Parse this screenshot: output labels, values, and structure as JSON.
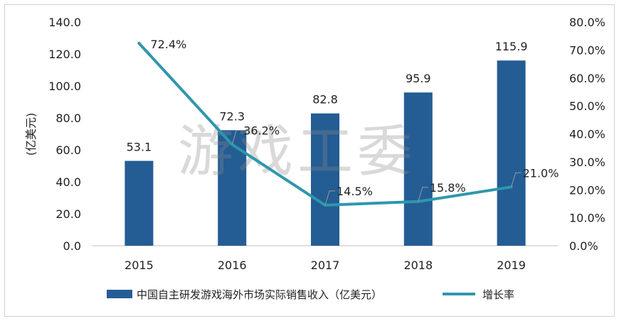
{
  "watermark": "游戏工委",
  "colors": {
    "bar": "#245C94",
    "line": "#2E97AC",
    "leader": "#9a9a9a"
  },
  "chart_data": {
    "type": "bar",
    "categories": [
      "2015",
      "2016",
      "2017",
      "2018",
      "2019"
    ],
    "series": [
      {
        "name": "中国自主研发游戏海外市场实际销售收入（亿美元）",
        "kind": "bar",
        "axis": "left",
        "values": [
          53.1,
          72.3,
          82.8,
          95.9,
          115.9
        ],
        "labels": [
          "53.1",
          "72.3",
          "82.8",
          "95.9",
          "115.9"
        ]
      },
      {
        "name": "增长率",
        "kind": "line",
        "axis": "right",
        "values": [
          72.4,
          36.2,
          14.5,
          15.8,
          21.0
        ],
        "labels": [
          "72.4%",
          "36.2%",
          "14.5%",
          "15.8%",
          "21.0%"
        ]
      }
    ],
    "ylabel": "(亿美元)",
    "ylim": [
      0,
      140
    ],
    "y2lim": [
      0,
      80
    ],
    "yticks": [
      "0.0",
      "20.0",
      "40.0",
      "60.0",
      "80.0",
      "100.0",
      "120.0",
      "140.0"
    ],
    "y2ticks": [
      "0.0%",
      "10.0%",
      "20.0%",
      "30.0%",
      "40.0%",
      "50.0%",
      "60.0%",
      "70.0%",
      "80.0%"
    ],
    "grid": false,
    "legend_position": "bottom"
  }
}
